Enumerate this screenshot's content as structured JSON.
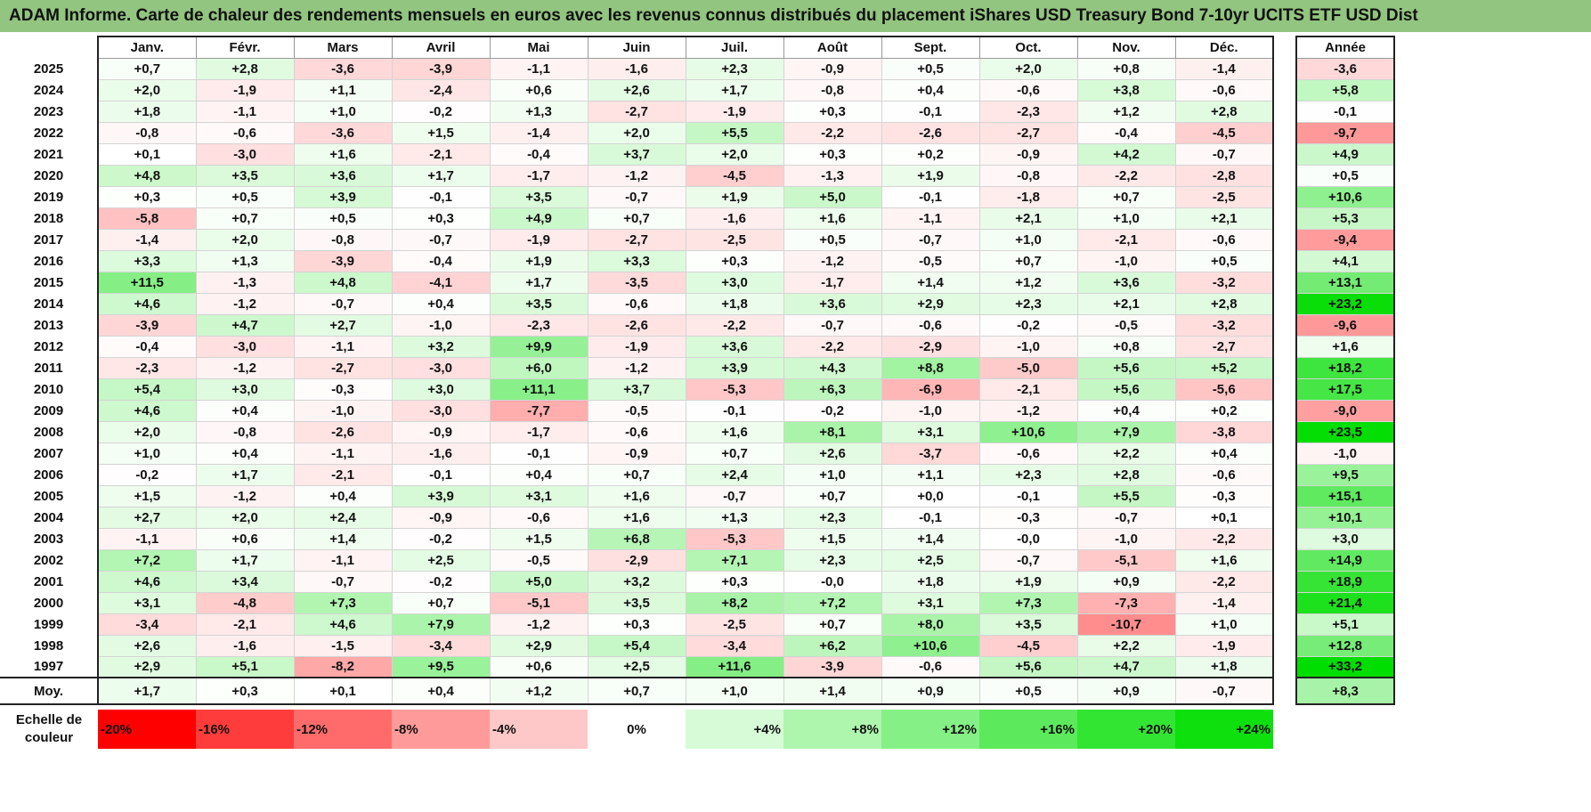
{
  "title": "ADAM Informe. Carte de chaleur des rendements mensuels en euros avec les revenus connus distribués du placement iShares USD Treasury Bond 7-10yr UCITS ETF USD Dist",
  "chart_data": {
    "type": "heatmap",
    "months": [
      "Janv.",
      "Févr.",
      "Mars",
      "Avril",
      "Mai",
      "Juin",
      "Juil.",
      "Août",
      "Sept.",
      "Oct.",
      "Nov.",
      "Déc."
    ],
    "annual_header": "Année",
    "rows": [
      {
        "year": "2025",
        "values": [
          "+0,7",
          "+2,8",
          "-3,6",
          "-3,9",
          "-1,1",
          "-1,6",
          "+2,3",
          "-0,9",
          "+0,5",
          "+2,0",
          "+0,8",
          "-1,4"
        ],
        "annual": "-3,6"
      },
      {
        "year": "2024",
        "values": [
          "+2,0",
          "-1,9",
          "+1,1",
          "-2,4",
          "+0,6",
          "+2,6",
          "+1,7",
          "-0,8",
          "+0,4",
          "-0,6",
          "+3,8",
          "-0,6"
        ],
        "annual": "+5,8"
      },
      {
        "year": "2023",
        "values": [
          "+1,8",
          "-1,1",
          "+1,0",
          "-0,2",
          "+1,3",
          "-2,7",
          "-1,9",
          "+0,3",
          "-0,1",
          "-2,3",
          "+1,2",
          "+2,8"
        ],
        "annual": "-0,1"
      },
      {
        "year": "2022",
        "values": [
          "-0,8",
          "-0,6",
          "-3,6",
          "+1,5",
          "-1,4",
          "+2,0",
          "+5,5",
          "-2,2",
          "-2,6",
          "-2,7",
          "-0,4",
          "-4,5"
        ],
        "annual": "-9,7"
      },
      {
        "year": "2021",
        "values": [
          "+0,1",
          "-3,0",
          "+1,6",
          "-2,1",
          "-0,4",
          "+3,7",
          "+2,0",
          "+0,3",
          "+0,2",
          "-0,9",
          "+4,2",
          "-0,7"
        ],
        "annual": "+4,9"
      },
      {
        "year": "2020",
        "values": [
          "+4,8",
          "+3,5",
          "+3,6",
          "+1,7",
          "-1,7",
          "-1,2",
          "-4,5",
          "-1,3",
          "+1,9",
          "-0,8",
          "-2,2",
          "-2,8"
        ],
        "annual": "+0,5"
      },
      {
        "year": "2019",
        "values": [
          "+0,3",
          "+0,5",
          "+3,9",
          "-0,1",
          "+3,5",
          "-0,7",
          "+1,9",
          "+5,0",
          "-0,1",
          "-1,8",
          "+0,7",
          "-2,5"
        ],
        "annual": "+10,6"
      },
      {
        "year": "2018",
        "values": [
          "-5,8",
          "+0,7",
          "+0,5",
          "+0,3",
          "+4,9",
          "+0,7",
          "-1,6",
          "+1,6",
          "-1,1",
          "+2,1",
          "+1,0",
          "+2,1"
        ],
        "annual": "+5,3"
      },
      {
        "year": "2017",
        "values": [
          "-1,4",
          "+2,0",
          "-0,8",
          "-0,7",
          "-1,9",
          "-2,7",
          "-2,5",
          "+0,5",
          "-0,7",
          "+1,0",
          "-2,1",
          "-0,6"
        ],
        "annual": "-9,4"
      },
      {
        "year": "2016",
        "values": [
          "+3,3",
          "+1,3",
          "-3,9",
          "-0,4",
          "+1,9",
          "+3,3",
          "+0,3",
          "-1,2",
          "-0,5",
          "+0,7",
          "-1,0",
          "+0,5"
        ],
        "annual": "+4,1"
      },
      {
        "year": "2015",
        "values": [
          "+11,5",
          "-1,3",
          "+4,8",
          "-4,1",
          "+1,7",
          "-3,5",
          "+3,0",
          "-1,7",
          "+1,4",
          "+1,2",
          "+3,6",
          "-3,2"
        ],
        "annual": "+13,1"
      },
      {
        "year": "2014",
        "values": [
          "+4,6",
          "-1,2",
          "-0,7",
          "+0,4",
          "+3,5",
          "-0,6",
          "+1,8",
          "+3,6",
          "+2,9",
          "+2,3",
          "+2,1",
          "+2,8"
        ],
        "annual": "+23,2"
      },
      {
        "year": "2013",
        "values": [
          "-3,9",
          "+4,7",
          "+2,7",
          "-1,0",
          "-2,3",
          "-2,6",
          "-2,2",
          "-0,7",
          "-0,6",
          "-0,2",
          "-0,5",
          "-3,2"
        ],
        "annual": "-9,6"
      },
      {
        "year": "2012",
        "values": [
          "-0,4",
          "-3,0",
          "-1,1",
          "+3,2",
          "+9,9",
          "-1,9",
          "+3,6",
          "-2,2",
          "-2,9",
          "-1,0",
          "+0,8",
          "-2,7"
        ],
        "annual": "+1,6"
      },
      {
        "year": "2011",
        "values": [
          "-2,3",
          "-1,2",
          "-2,7",
          "-3,0",
          "+6,0",
          "-1,2",
          "+3,9",
          "+4,3",
          "+8,8",
          "-5,0",
          "+5,6",
          "+5,2"
        ],
        "annual": "+18,2"
      },
      {
        "year": "2010",
        "values": [
          "+5,4",
          "+3,0",
          "-0,3",
          "+3,0",
          "+11,1",
          "+3,7",
          "-5,3",
          "+6,3",
          "-6,9",
          "-2,1",
          "+5,6",
          "-5,6"
        ],
        "annual": "+17,5"
      },
      {
        "year": "2009",
        "values": [
          "+4,6",
          "+0,4",
          "-1,0",
          "-3,0",
          "-7,7",
          "-0,5",
          "-0,1",
          "-0,2",
          "-1,0",
          "-1,2",
          "+0,4",
          "+0,2"
        ],
        "annual": "-9,0"
      },
      {
        "year": "2008",
        "values": [
          "+2,0",
          "-0,8",
          "-2,6",
          "-0,9",
          "-1,7",
          "-0,6",
          "+1,6",
          "+8,1",
          "+3,1",
          "+10,6",
          "+7,9",
          "-3,8"
        ],
        "annual": "+23,5"
      },
      {
        "year": "2007",
        "values": [
          "+1,0",
          "+0,4",
          "-1,1",
          "-1,6",
          "-0,1",
          "-0,9",
          "+0,7",
          "+2,6",
          "-3,7",
          "-0,6",
          "+2,2",
          "+0,4"
        ],
        "annual": "-1,0"
      },
      {
        "year": "2006",
        "values": [
          "-0,2",
          "+1,7",
          "-2,1",
          "-0,1",
          "+0,4",
          "+0,7",
          "+2,4",
          "+1,0",
          "+1,1",
          "+2,3",
          "+2,8",
          "-0,6"
        ],
        "annual": "+9,5"
      },
      {
        "year": "2005",
        "values": [
          "+1,5",
          "-1,2",
          "+0,4",
          "+3,9",
          "+3,1",
          "+1,6",
          "-0,7",
          "+0,7",
          "+0,0",
          "-0,1",
          "+5,5",
          "-0,3"
        ],
        "annual": "+15,1"
      },
      {
        "year": "2004",
        "values": [
          "+2,7",
          "+2,0",
          "+2,4",
          "-0,9",
          "-0,6",
          "+1,6",
          "+1,3",
          "+2,3",
          "-0,1",
          "-0,3",
          "-0,7",
          "+0,1"
        ],
        "annual": "+10,1"
      },
      {
        "year": "2003",
        "values": [
          "-1,1",
          "+0,6",
          "+1,4",
          "-0,2",
          "+1,5",
          "+6,8",
          "-5,3",
          "+1,5",
          "+1,4",
          "-0,0",
          "-1,0",
          "-2,2"
        ],
        "annual": "+3,0"
      },
      {
        "year": "2002",
        "values": [
          "+7,2",
          "+1,7",
          "-1,1",
          "+2,5",
          "-0,5",
          "-2,9",
          "+7,1",
          "+2,3",
          "+2,5",
          "-0,7",
          "-5,1",
          "+1,6"
        ],
        "annual": "+14,9"
      },
      {
        "year": "2001",
        "values": [
          "+4,6",
          "+3,4",
          "-0,7",
          "-0,2",
          "+5,0",
          "+3,2",
          "+0,3",
          "-0,0",
          "+1,8",
          "+1,9",
          "+0,9",
          "-2,2"
        ],
        "annual": "+18,9"
      },
      {
        "year": "2000",
        "values": [
          "+3,1",
          "-4,8",
          "+7,3",
          "+0,7",
          "-5,1",
          "+3,5",
          "+8,2",
          "+7,2",
          "+3,1",
          "+7,3",
          "-7,3",
          "-1,4"
        ],
        "annual": "+21,4"
      },
      {
        "year": "1999",
        "values": [
          "-3,4",
          "-2,1",
          "+4,6",
          "+7,9",
          "-1,2",
          "+0,3",
          "-2,5",
          "+0,7",
          "+8,0",
          "+3,5",
          "-10,7",
          "+1,0"
        ],
        "annual": "+5,1"
      },
      {
        "year": "1998",
        "values": [
          "+2,6",
          "-1,6",
          "-1,5",
          "-3,4",
          "+2,9",
          "+5,4",
          "-3,4",
          "+6,2",
          "+10,6",
          "-4,5",
          "+2,2",
          "-1,9"
        ],
        "annual": "+12,8"
      },
      {
        "year": "1997",
        "values": [
          "+2,9",
          "+5,1",
          "-8,2",
          "+9,5",
          "+0,6",
          "+2,5",
          "+11,6",
          "-3,9",
          "-0,6",
          "+5,6",
          "+4,7",
          "+1,8"
        ],
        "annual": "+33,2"
      }
    ],
    "average": {
      "label": "Moy.",
      "values": [
        "+1,7",
        "+0,3",
        "+0,1",
        "+0,4",
        "+1,2",
        "+0,7",
        "+1,0",
        "+1,4",
        "+0,9",
        "+0,5",
        "+0,9",
        "-0,7"
      ],
      "annual": "+8,3"
    },
    "scale": {
      "label": "Echelle de couleur",
      "steps": [
        {
          "label": "-20%",
          "value": -20,
          "color": "#ff0000"
        },
        {
          "label": "-16%",
          "value": -16,
          "color": "#ff3c3c"
        },
        {
          "label": "-12%",
          "value": -12,
          "color": "#ff6b6b"
        },
        {
          "label": "-8%",
          "value": -8,
          "color": "#ff9a9a"
        },
        {
          "label": "-4%",
          "value": -4,
          "color": "#ffc8c8"
        },
        {
          "label": "0%",
          "value": 0,
          "color": "#ffffff"
        },
        {
          "label": "+4%",
          "value": 4,
          "color": "#d6fbd6"
        },
        {
          "label": "+8%",
          "value": 8,
          "color": "#aef5ae"
        },
        {
          "label": "+12%",
          "value": 12,
          "color": "#85f085"
        },
        {
          "label": "+16%",
          "value": 16,
          "color": "#5cea5c"
        },
        {
          "label": "+20%",
          "value": 20,
          "color": "#33e533"
        },
        {
          "label": "+24%",
          "value": 24,
          "color": "#0de00d"
        }
      ]
    },
    "colors": {
      "negative_max": "#ff0000",
      "zero": "#ffffff",
      "positive_max": "#00dd00"
    }
  }
}
